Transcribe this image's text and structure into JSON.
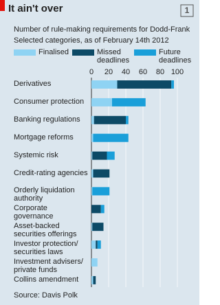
{
  "chart_number": "1",
  "chart_data": {
    "type": "stacked-bar-horizontal",
    "title": "It ain't over",
    "subtitle": "Number of rule-making requirements for Dodd-Frank",
    "subtitle2": "Selected categories, as of February 14th 2012",
    "source": "Source: Davis Polk",
    "categories": [
      "Derivatives",
      "Consumer protection",
      "Banking regulations",
      "Mortgage reforms",
      "Systemic risk",
      "Credit-rating agencies",
      "Orderly liquidation authority",
      "Corporate governance",
      "Asset-backed securities offerings",
      "Investor protection/ securities laws",
      "Investment advisers/ private funds",
      "Collins amendment"
    ],
    "series": [
      {
        "name": "Finalised",
        "color": "#8fd3f3",
        "values": [
          30,
          24,
          3,
          2,
          1,
          2,
          1,
          0,
          1,
          5,
          7,
          2
        ]
      },
      {
        "name": "Missed deadlines",
        "color": "#0d4a66",
        "values": [
          63,
          0,
          37,
          0,
          17,
          19,
          0,
          11,
          13,
          2,
          0,
          3
        ]
      },
      {
        "name": "Future deadlines",
        "color": "#1a9fd9",
        "values": [
          3,
          39,
          3,
          41,
          9,
          0,
          20,
          4,
          0,
          4,
          0,
          0
        ]
      }
    ],
    "xlim": [
      0,
      100
    ],
    "xticks": [
      0,
      20,
      40,
      60,
      80,
      100
    ],
    "grid": true
  }
}
